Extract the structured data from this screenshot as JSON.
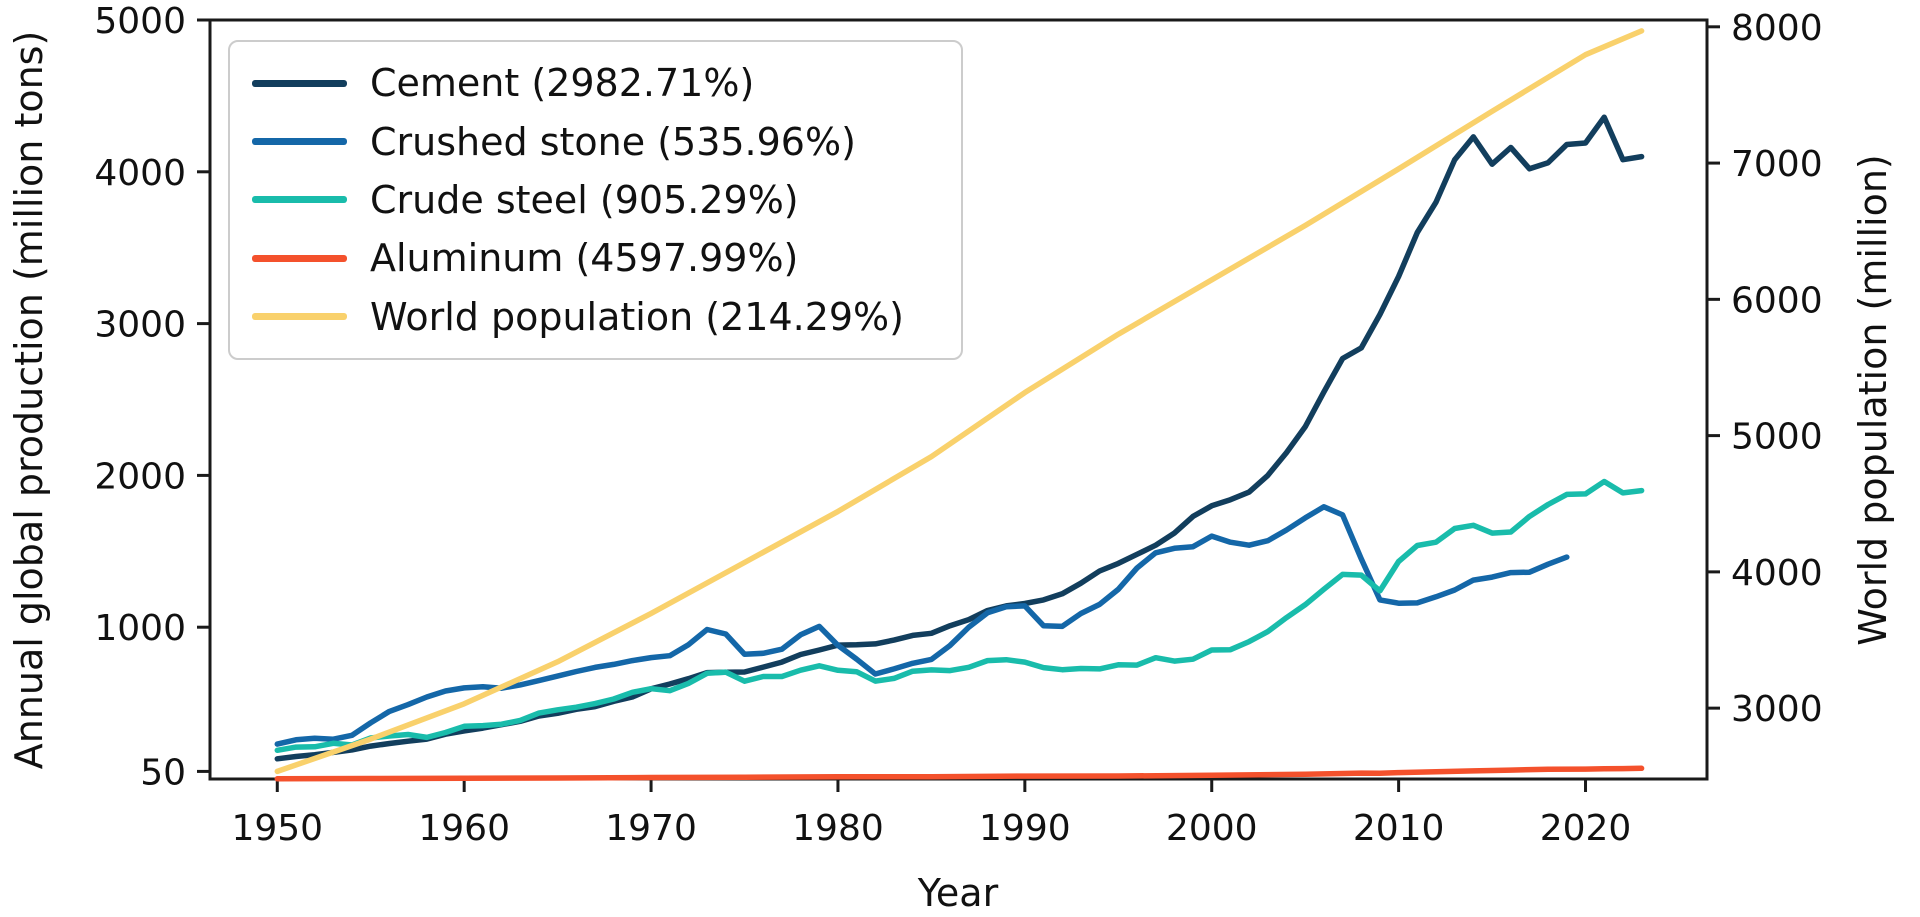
{
  "style": {
    "background": "#ffffff",
    "text_color": "#111111",
    "axis_color": "#1a1a1a",
    "legend_border_color": "#cccccc"
  },
  "chart_data": {
    "type": "line",
    "title": "",
    "grid": false,
    "legend_position": "upper-left",
    "x_axis": {
      "label": "Year",
      "min": 1946.4,
      "max": 2026.5,
      "ticks": [
        1950,
        1960,
        1970,
        1980,
        1990,
        2000,
        2010,
        2020
      ]
    },
    "y_axis_left": {
      "label": "Annual global production (million tons)",
      "min": 0,
      "max": 5000,
      "ticks": [
        50,
        1000,
        2000,
        3000,
        4000,
        5000
      ]
    },
    "y_axis_right": {
      "label": "World population (million)",
      "min": 2480,
      "max": 8050,
      "ticks": [
        3000,
        4000,
        5000,
        6000,
        7000,
        8000
      ]
    },
    "series": [
      {
        "name": "Cement",
        "legend_label": "Cement (2982.71%)",
        "percent_change": "2982.71%",
        "color": "#123e5d",
        "axis": "left",
        "points": [
          [
            1950,
            133
          ],
          [
            1951,
            148
          ],
          [
            1952,
            160
          ],
          [
            1953,
            175
          ],
          [
            1954,
            192
          ],
          [
            1955,
            217
          ],
          [
            1956,
            234
          ],
          [
            1957,
            249
          ],
          [
            1958,
            263
          ],
          [
            1959,
            295
          ],
          [
            1960,
            317
          ],
          [
            1961,
            335
          ],
          [
            1962,
            358
          ],
          [
            1963,
            380
          ],
          [
            1964,
            415
          ],
          [
            1965,
            433
          ],
          [
            1966,
            459
          ],
          [
            1967,
            477
          ],
          [
            1968,
            512
          ],
          [
            1969,
            540
          ],
          [
            1970,
            594
          ],
          [
            1971,
            626
          ],
          [
            1972,
            661
          ],
          [
            1973,
            701
          ],
          [
            1974,
            703
          ],
          [
            1975,
            705
          ],
          [
            1976,
            737
          ],
          [
            1977,
            770
          ],
          [
            1978,
            820
          ],
          [
            1979,
            850
          ],
          [
            1980,
            882
          ],
          [
            1981,
            884
          ],
          [
            1982,
            890
          ],
          [
            1983,
            915
          ],
          [
            1984,
            946
          ],
          [
            1985,
            960
          ],
          [
            1986,
            1010
          ],
          [
            1987,
            1050
          ],
          [
            1988,
            1110
          ],
          [
            1989,
            1140
          ],
          [
            1990,
            1156
          ],
          [
            1991,
            1180
          ],
          [
            1992,
            1220
          ],
          [
            1993,
            1290
          ],
          [
            1994,
            1370
          ],
          [
            1995,
            1420
          ],
          [
            1996,
            1480
          ],
          [
            1997,
            1540
          ],
          [
            1998,
            1620
          ],
          [
            1999,
            1730
          ],
          [
            2000,
            1800
          ],
          [
            2001,
            1840
          ],
          [
            2002,
            1890
          ],
          [
            2003,
            2000
          ],
          [
            2004,
            2150
          ],
          [
            2005,
            2320
          ],
          [
            2006,
            2550
          ],
          [
            2007,
            2770
          ],
          [
            2008,
            2840
          ],
          [
            2009,
            3060
          ],
          [
            2010,
            3310
          ],
          [
            2011,
            3600
          ],
          [
            2012,
            3800
          ],
          [
            2013,
            4080
          ],
          [
            2014,
            4230
          ],
          [
            2015,
            4050
          ],
          [
            2016,
            4160
          ],
          [
            2017,
            4020
          ],
          [
            2018,
            4060
          ],
          [
            2019,
            4180
          ],
          [
            2020,
            4190
          ],
          [
            2021,
            4360
          ],
          [
            2022,
            4080
          ],
          [
            2023,
            4100
          ]
        ]
      },
      {
        "name": "Crushed stone",
        "legend_label": "Crushed stone (535.96%)",
        "percent_change": "535.96%",
        "color": "#1467a8",
        "axis": "left",
        "points": [
          [
            1950,
            230
          ],
          [
            1951,
            258
          ],
          [
            1952,
            268
          ],
          [
            1953,
            262
          ],
          [
            1954,
            288
          ],
          [
            1955,
            370
          ],
          [
            1956,
            445
          ],
          [
            1957,
            490
          ],
          [
            1958,
            540
          ],
          [
            1959,
            580
          ],
          [
            1960,
            600
          ],
          [
            1961,
            608
          ],
          [
            1962,
            598
          ],
          [
            1963,
            620
          ],
          [
            1964,
            648
          ],
          [
            1965,
            678
          ],
          [
            1966,
            708
          ],
          [
            1967,
            735
          ],
          [
            1968,
            755
          ],
          [
            1969,
            780
          ],
          [
            1970,
            800
          ],
          [
            1971,
            812
          ],
          [
            1972,
            885
          ],
          [
            1973,
            985
          ],
          [
            1974,
            955
          ],
          [
            1975,
            822
          ],
          [
            1976,
            828
          ],
          [
            1977,
            855
          ],
          [
            1978,
            950
          ],
          [
            1979,
            1005
          ],
          [
            1980,
            880
          ],
          [
            1981,
            790
          ],
          [
            1982,
            692
          ],
          [
            1983,
            725
          ],
          [
            1984,
            762
          ],
          [
            1985,
            788
          ],
          [
            1986,
            880
          ],
          [
            1987,
            1000
          ],
          [
            1988,
            1095
          ],
          [
            1989,
            1135
          ],
          [
            1990,
            1140
          ],
          [
            1991,
            1010
          ],
          [
            1992,
            1005
          ],
          [
            1993,
            1090
          ],
          [
            1994,
            1150
          ],
          [
            1995,
            1250
          ],
          [
            1996,
            1390
          ],
          [
            1997,
            1490
          ],
          [
            1998,
            1520
          ],
          [
            1999,
            1530
          ],
          [
            2000,
            1600
          ],
          [
            2001,
            1560
          ],
          [
            2002,
            1540
          ],
          [
            2003,
            1570
          ],
          [
            2004,
            1640
          ],
          [
            2005,
            1720
          ],
          [
            2006,
            1793
          ],
          [
            2007,
            1740
          ],
          [
            2008,
            1450
          ],
          [
            2009,
            1180
          ],
          [
            2010,
            1158
          ],
          [
            2011,
            1160
          ],
          [
            2012,
            1200
          ],
          [
            2013,
            1245
          ],
          [
            2014,
            1310
          ],
          [
            2015,
            1330
          ],
          [
            2016,
            1360
          ],
          [
            2017,
            1362
          ],
          [
            2018,
            1415
          ],
          [
            2019,
            1462
          ]
        ]
      },
      {
        "name": "Crude steel",
        "legend_label": "Crude steel (905.29%)",
        "percent_change": "905.29%",
        "color": "#19bcab",
        "axis": "left",
        "points": [
          [
            1950,
            189
          ],
          [
            1951,
            210
          ],
          [
            1952,
            212
          ],
          [
            1953,
            235
          ],
          [
            1954,
            224
          ],
          [
            1955,
            270
          ],
          [
            1956,
            283
          ],
          [
            1957,
            293
          ],
          [
            1958,
            274
          ],
          [
            1959,
            306
          ],
          [
            1960,
            347
          ],
          [
            1961,
            352
          ],
          [
            1962,
            361
          ],
          [
            1963,
            386
          ],
          [
            1964,
            434
          ],
          [
            1965,
            456
          ],
          [
            1966,
            473
          ],
          [
            1967,
            497
          ],
          [
            1968,
            527
          ],
          [
            1969,
            571
          ],
          [
            1970,
            595
          ],
          [
            1971,
            582
          ],
          [
            1972,
            630
          ],
          [
            1973,
            696
          ],
          [
            1974,
            704
          ],
          [
            1975,
            644
          ],
          [
            1976,
            675
          ],
          [
            1977,
            675
          ],
          [
            1978,
            717
          ],
          [
            1979,
            746
          ],
          [
            1980,
            716
          ],
          [
            1981,
            707
          ],
          [
            1982,
            645
          ],
          [
            1983,
            663
          ],
          [
            1984,
            710
          ],
          [
            1985,
            719
          ],
          [
            1986,
            714
          ],
          [
            1987,
            736
          ],
          [
            1988,
            780
          ],
          [
            1989,
            786
          ],
          [
            1990,
            770
          ],
          [
            1991,
            734
          ],
          [
            1992,
            720
          ],
          [
            1993,
            728
          ],
          [
            1994,
            725
          ],
          [
            1995,
            752
          ],
          [
            1996,
            750
          ],
          [
            1997,
            799
          ],
          [
            1998,
            777
          ],
          [
            1999,
            789
          ],
          [
            2000,
            850
          ],
          [
            2001,
            852
          ],
          [
            2002,
            905
          ],
          [
            2003,
            971
          ],
          [
            2004,
            1063
          ],
          [
            2005,
            1148
          ],
          [
            2006,
            1250
          ],
          [
            2007,
            1348
          ],
          [
            2008,
            1343
          ],
          [
            2009,
            1239
          ],
          [
            2010,
            1433
          ],
          [
            2011,
            1538
          ],
          [
            2012,
            1560
          ],
          [
            2013,
            1650
          ],
          [
            2014,
            1671
          ],
          [
            2015,
            1620
          ],
          [
            2016,
            1627
          ],
          [
            2017,
            1730
          ],
          [
            2018,
            1808
          ],
          [
            2019,
            1875
          ],
          [
            2020,
            1878
          ],
          [
            2021,
            1960
          ],
          [
            2022,
            1885
          ],
          [
            2023,
            1900
          ]
        ]
      },
      {
        "name": "Aluminum",
        "legend_label": "Aluminum (4597.99%)",
        "percent_change": "4597.99%",
        "color": "#f4512c",
        "axis": "left",
        "points": [
          [
            1950,
            1.5
          ],
          [
            1955,
            3.1
          ],
          [
            1960,
            4.5
          ],
          [
            1965,
            6.3
          ],
          [
            1970,
            9.7
          ],
          [
            1975,
            12.1
          ],
          [
            1980,
            15.4
          ],
          [
            1985,
            15.4
          ],
          [
            1990,
            19.3
          ],
          [
            1995,
            19.7
          ],
          [
            2000,
            24.4
          ],
          [
            2005,
            31.9
          ],
          [
            2008,
            39.0
          ],
          [
            2009,
            37.3
          ],
          [
            2010,
            42.4
          ],
          [
            2012,
            47.9
          ],
          [
            2014,
            53.1
          ],
          [
            2016,
            58.9
          ],
          [
            2018,
            64.3
          ],
          [
            2020,
            65.3
          ],
          [
            2021,
            67.5
          ],
          [
            2022,
            68.5
          ],
          [
            2023,
            70.5
          ]
        ]
      },
      {
        "name": "World population",
        "legend_label": "World population (214.29%)",
        "percent_change": "214.29%",
        "color": "#f9d16c",
        "axis": "right",
        "points": [
          [
            1950,
            2536
          ],
          [
            1955,
            2773
          ],
          [
            1960,
            3032
          ],
          [
            1965,
            3340
          ],
          [
            1970,
            3695
          ],
          [
            1975,
            4069
          ],
          [
            1980,
            4444
          ],
          [
            1985,
            4846
          ],
          [
            1990,
            5316
          ],
          [
            1995,
            5744
          ],
          [
            2000,
            6143
          ],
          [
            2005,
            6542
          ],
          [
            2010,
            6957
          ],
          [
            2015,
            7380
          ],
          [
            2020,
            7795
          ],
          [
            2023,
            7970
          ]
        ]
      }
    ]
  }
}
